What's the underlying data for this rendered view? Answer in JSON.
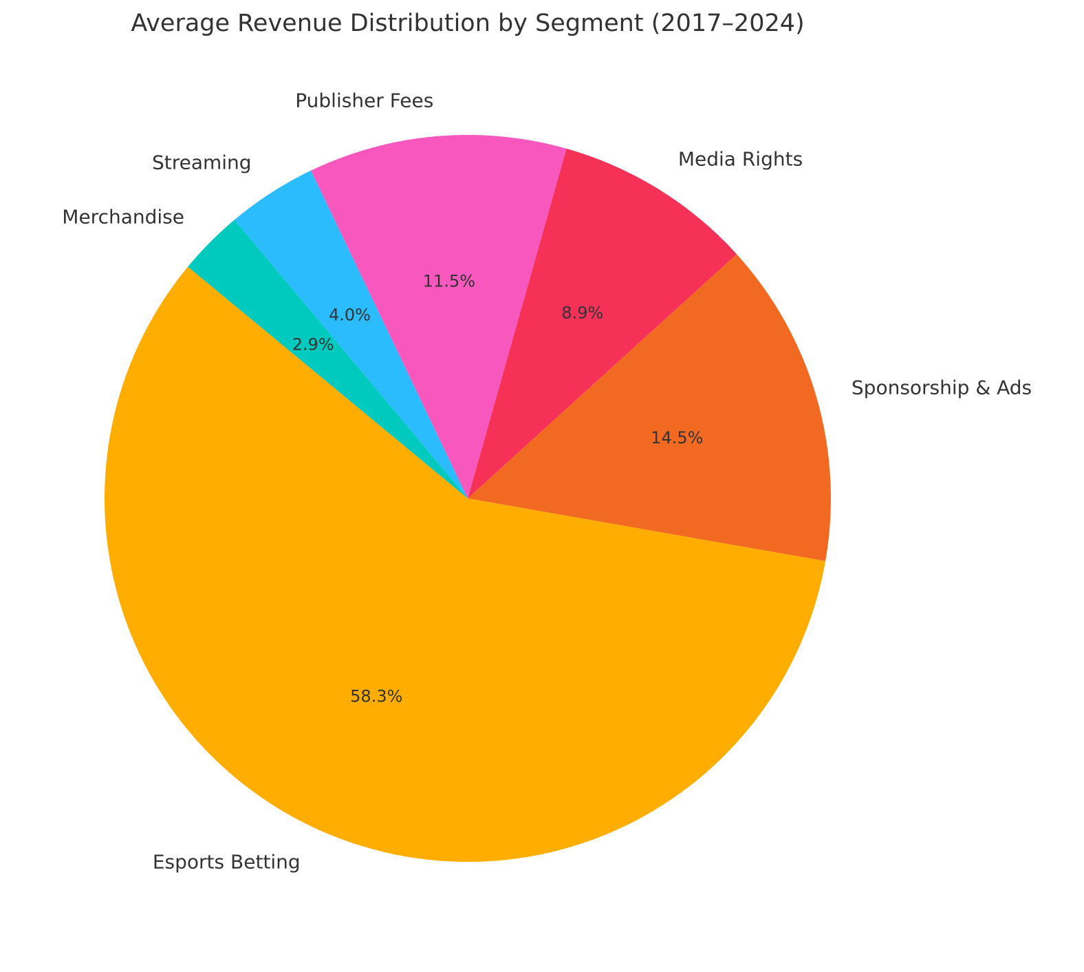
{
  "chart_data": {
    "type": "pie",
    "title": "Average Revenue Distribution by Segment (2017–2024)",
    "start_angle_deg": 140.4,
    "direction": "counterclockwise",
    "slices": [
      {
        "label": "Esports Betting",
        "value": 58.3,
        "pct_label": "58.3%",
        "color": "#FFAE00"
      },
      {
        "label": "Sponsorship & Ads",
        "value": 14.5,
        "pct_label": "14.5%",
        "color": "#F26A21"
      },
      {
        "label": "Media Rights",
        "value": 8.9,
        "pct_label": "8.9%",
        "color": "#F53157"
      },
      {
        "label": "Publisher Fees",
        "value": 11.5,
        "pct_label": "11.5%",
        "color": "#F858BE"
      },
      {
        "label": "Streaming",
        "value": 4.0,
        "pct_label": "4.0%",
        "color": "#2BBCFD"
      },
      {
        "label": "Merchandise",
        "value": 2.9,
        "pct_label": "2.9%",
        "color": "#00C9BE"
      }
    ]
  }
}
